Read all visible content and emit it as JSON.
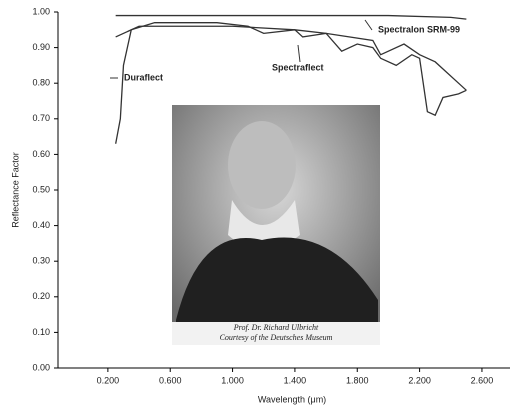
{
  "chart_data": {
    "type": "line",
    "xlabel": "Wavelength (μm)",
    "ylabel": "Reflectance Factor",
    "xlim": [
      -0.12,
      2.78
    ],
    "ylim": [
      0,
      1
    ],
    "xticks": [
      {
        "value": 0.2,
        "label": "0.200"
      },
      {
        "value": 0.6,
        "label": "0.600"
      },
      {
        "value": 1.0,
        "label": "1.000"
      },
      {
        "value": 1.4,
        "label": "1.400"
      },
      {
        "value": 1.8,
        "label": "1.800"
      },
      {
        "value": 2.2,
        "label": "2.200"
      },
      {
        "value": 2.6,
        "label": "2.600"
      }
    ],
    "yticks": [
      {
        "value": 0,
        "label": "0.00"
      },
      {
        "value": 0.1,
        "label": "0.10"
      },
      {
        "value": 0.2,
        "label": "0.20"
      },
      {
        "value": 0.3,
        "label": "0.30"
      },
      {
        "value": 0.4,
        "label": "0.40"
      },
      {
        "value": 0.5,
        "label": "0.50"
      },
      {
        "value": 0.6,
        "label": "0.60"
      },
      {
        "value": 0.7,
        "label": "0.70"
      },
      {
        "value": 0.8,
        "label": "0.80"
      },
      {
        "value": 0.9,
        "label": "0.90"
      },
      {
        "value": 1.0,
        "label": "1.00"
      }
    ],
    "series": [
      {
        "name": "Spectralon SRM-99",
        "color": "#333333",
        "x": [
          0.25,
          0.5,
          1.0,
          1.5,
          2.0,
          2.4,
          2.5
        ],
        "values": [
          0.99,
          0.99,
          0.99,
          0.99,
          0.99,
          0.985,
          0.98
        ]
      },
      {
        "name": "Spectraflect",
        "color": "#333333",
        "x": [
          0.25,
          0.4,
          0.7,
          1.0,
          1.4,
          1.45,
          1.6,
          1.9,
          1.95,
          2.1,
          2.2,
          2.3,
          2.45,
          2.5
        ],
        "values": [
          0.93,
          0.96,
          0.96,
          0.96,
          0.95,
          0.93,
          0.94,
          0.92,
          0.88,
          0.91,
          0.88,
          0.86,
          0.8,
          0.78
        ]
      },
      {
        "name": "Duraflect",
        "color": "#333333",
        "x": [
          0.25,
          0.28,
          0.3,
          0.35,
          0.5,
          0.9,
          1.1,
          1.2,
          1.4,
          1.6,
          1.7,
          1.8,
          1.9,
          1.95,
          2.05,
          2.15,
          2.2,
          2.25,
          2.3,
          2.35,
          2.45,
          2.5
        ],
        "values": [
          0.63,
          0.7,
          0.85,
          0.95,
          0.97,
          0.97,
          0.96,
          0.94,
          0.95,
          0.94,
          0.89,
          0.91,
          0.9,
          0.87,
          0.85,
          0.88,
          0.87,
          0.72,
          0.71,
          0.76,
          0.77,
          0.78
        ]
      }
    ],
    "inset_caption": [
      "Prof. Dr. Richard Ulbricht",
      "Courtesy of the Deutsches Museum"
    ]
  }
}
